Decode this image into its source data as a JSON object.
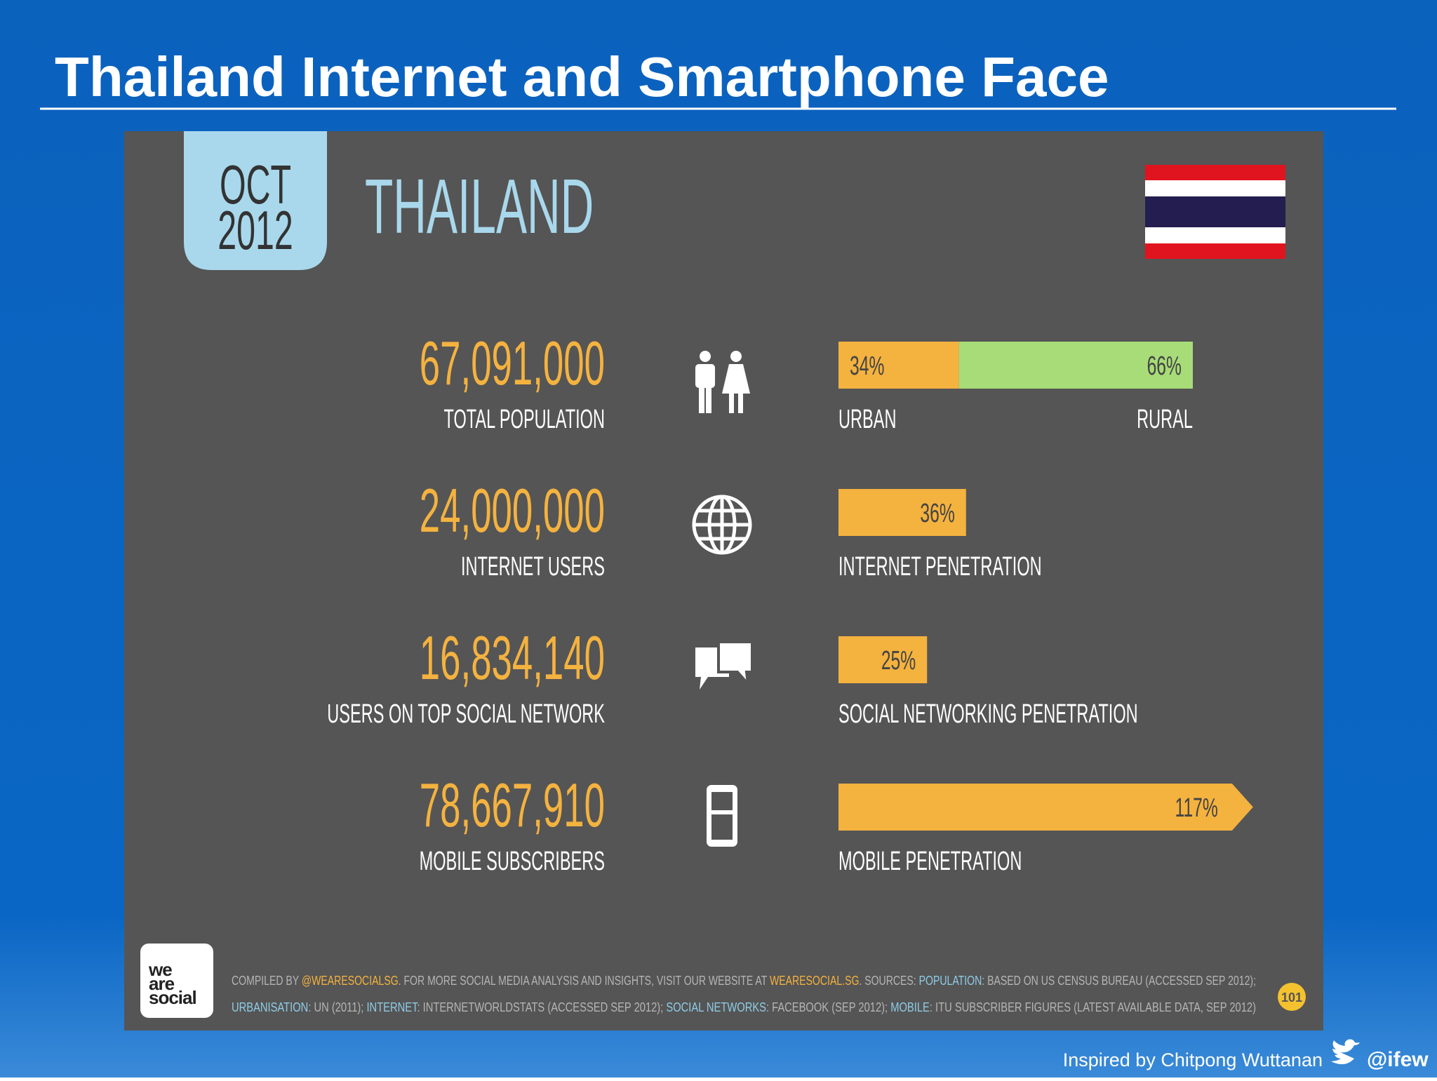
{
  "header": {
    "title": "Thailand Internet and Smartphone Face"
  },
  "panel": {
    "date": [
      "OCT",
      "2012"
    ],
    "country": "THAILAND",
    "rows": [
      {
        "number": "67,091,000",
        "label": "TOTAL POPULATION",
        "bars": [
          {
            "value": 34,
            "value_label": "34%",
            "color": "#f4b23f"
          },
          {
            "value": 66,
            "value_label": "66%",
            "color": "#a8dc78"
          }
        ],
        "bar_labels": [
          "URBAN",
          "RURAL"
        ]
      },
      {
        "number": "24,000,000",
        "label": "INTERNET USERS",
        "bars": [
          {
            "value": 36,
            "value_label": "36%",
            "color": "#f4b23f"
          }
        ],
        "bar_labels": [
          "INTERNET PENETRATION"
        ]
      },
      {
        "number": "16,834,140",
        "label": "USERS ON TOP SOCIAL NETWORK",
        "bars": [
          {
            "value": 25,
            "value_label": "25%",
            "color": "#f4b23f"
          }
        ],
        "bar_labels": [
          "SOCIAL NETWORKING PENETRATION"
        ]
      },
      {
        "number": "78,667,910",
        "label": "MOBILE SUBSCRIBERS",
        "bars": [
          {
            "value": 117,
            "value_label": "117%",
            "color": "#f4b23f"
          }
        ],
        "bar_labels": [
          "MOBILE PENETRATION"
        ],
        "arrow": true
      }
    ],
    "footer": {
      "logo": [
        "we",
        "are",
        "social"
      ],
      "page": "101",
      "lines": [
        [
          {
            "text": "COMPILED BY ",
            "color": "#b5b5b5"
          },
          {
            "text": "@WEARESOCIALSG",
            "color": "#f4b23f"
          },
          {
            "text": ". FOR MORE SOCIAL MEDIA ANALYSIS AND INSIGHTS, VISIT OUR WEBSITE AT ",
            "color": "#b5b5b5"
          },
          {
            "text": "WEARESOCIAL.SG",
            "color": "#f4b23f"
          },
          {
            "text": ". SOURCES: ",
            "color": "#b5b5b5"
          },
          {
            "text": "POPULATION",
            "color": "#8ecde8"
          },
          {
            "text": ": BASED ON US CENSUS BUREAU (ACCESSED SEP 2012);",
            "color": "#b5b5b5"
          }
        ],
        [
          {
            "text": "URBANISATION",
            "color": "#8ecde8"
          },
          {
            "text": ": UN (2011); ",
            "color": "#b5b5b5"
          },
          {
            "text": "INTERNET",
            "color": "#8ecde8"
          },
          {
            "text": ": INTERNETWORLDSTATS (ACCESSED SEP 2012); ",
            "color": "#b5b5b5"
          },
          {
            "text": "SOCIAL NETWORKS",
            "color": "#8ecde8"
          },
          {
            "text": ": FACEBOOK (SEP 2012); ",
            "color": "#b5b5b5"
          },
          {
            "text": "MOBILE",
            "color": "#8ecde8"
          },
          {
            "text": ": ITU SUBSCRIBER FIGURES (LATEST AVAILABLE DATA, SEP 2012)",
            "color": "#b5b5b5"
          }
        ]
      ]
    }
  },
  "credit": {
    "text": "Inspired by Chitpong Wuttanan",
    "handle": "@ifew"
  }
}
